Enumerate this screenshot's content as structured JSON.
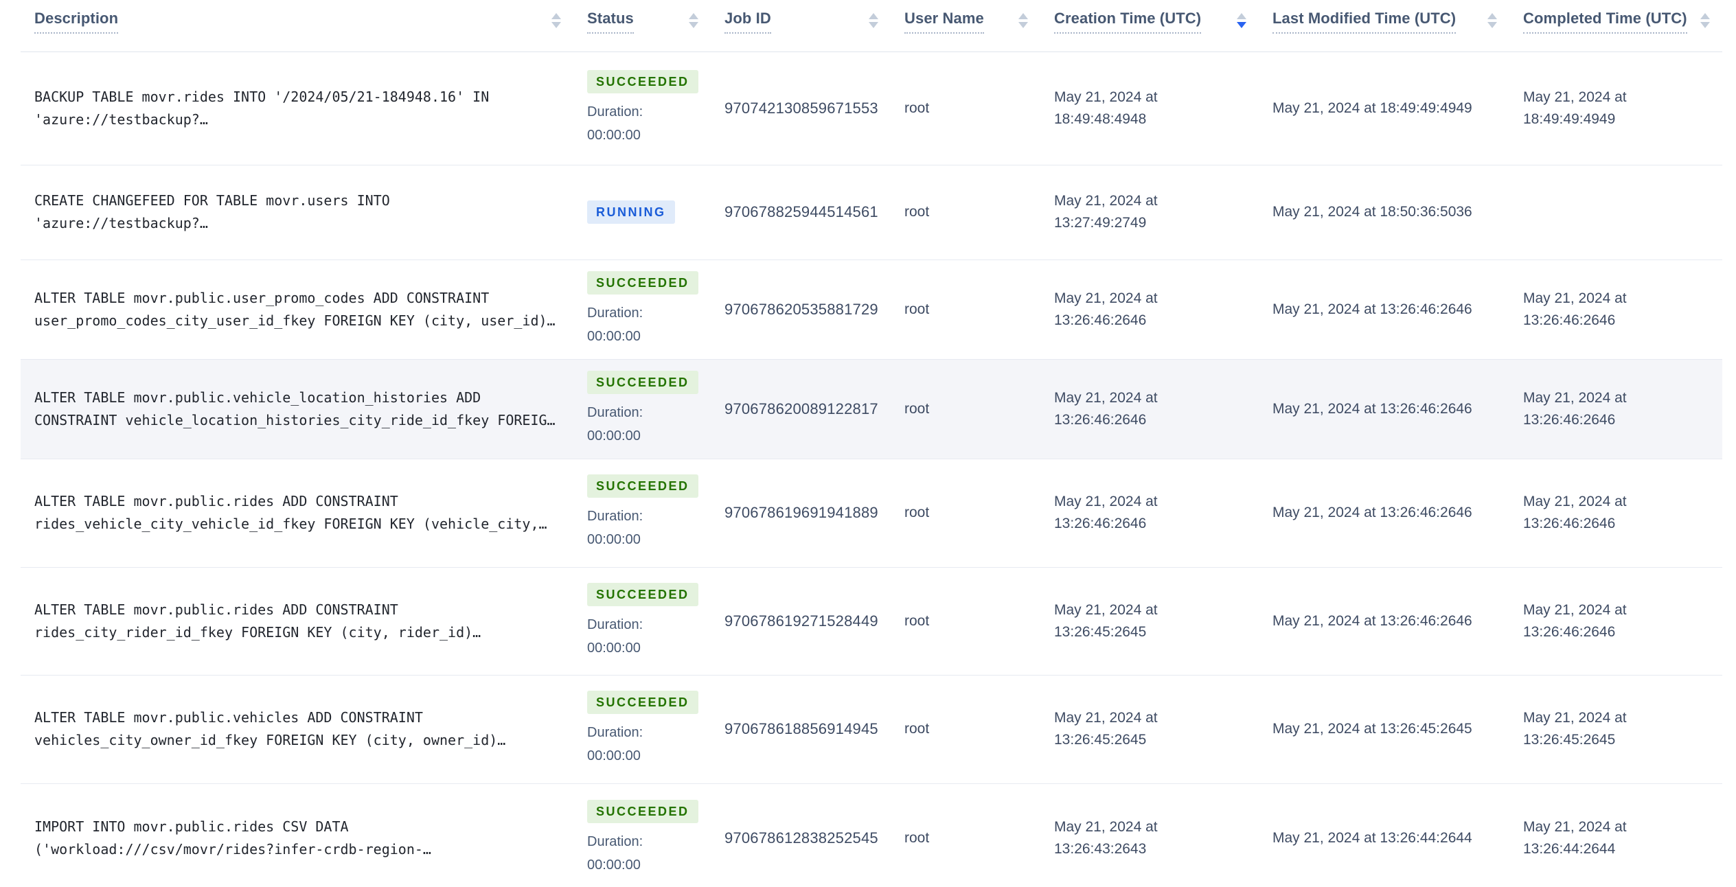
{
  "table": {
    "duration_label": "Duration:",
    "columns": [
      {
        "id": "description",
        "label": "Description",
        "sorted": null
      },
      {
        "id": "status",
        "label": "Status",
        "sorted": null
      },
      {
        "id": "job_id",
        "label": "Job ID",
        "sorted": null
      },
      {
        "id": "user_name",
        "label": "User Name",
        "sorted": null
      },
      {
        "id": "creation_time",
        "label": "Creation Time (UTC)",
        "sorted": "desc"
      },
      {
        "id": "last_modified_time",
        "label": "Last Modified Time (UTC)",
        "sorted": null
      },
      {
        "id": "completed_time",
        "label": "Completed Time (UTC)",
        "sorted": null
      }
    ],
    "rows": [
      {
        "description": "BACKUP TABLE movr.rides INTO '/2024/05/21-184948.16' IN 'azure://testbackup?…",
        "status": "SUCCEEDED",
        "duration": "00:00:00",
        "job_id": "970742130859671553",
        "user_name": "root",
        "creation_time": "May 21, 2024 at 18:49:48:4948",
        "last_modified_time": "May 21, 2024 at 18:49:49:4949",
        "completed_time": "May 21, 2024 at 18:49:49:4949",
        "highlighted": false
      },
      {
        "description": "CREATE CHANGEFEED FOR TABLE movr.users INTO 'azure://testbackup?…",
        "status": "RUNNING",
        "duration": null,
        "job_id": "970678825944514561",
        "user_name": "root",
        "creation_time": "May 21, 2024 at 13:27:49:2749",
        "last_modified_time": "May 21, 2024 at 18:50:36:5036",
        "completed_time": "",
        "highlighted": false
      },
      {
        "description": "ALTER TABLE movr.public.user_promo_codes ADD CONSTRAINT user_promo_codes_city_user_id_fkey FOREIGN KEY (city, user_id)…",
        "status": "SUCCEEDED",
        "duration": "00:00:00",
        "job_id": "970678620535881729",
        "user_name": "root",
        "creation_time": "May 21, 2024 at 13:26:46:2646",
        "last_modified_time": "May 21, 2024 at 13:26:46:2646",
        "completed_time": "May 21, 2024 at 13:26:46:2646",
        "highlighted": false
      },
      {
        "description": "ALTER TABLE movr.public.vehicle_location_histories ADD CONSTRAINT vehicle_location_histories_city_ride_id_fkey FOREIG…",
        "status": "SUCCEEDED",
        "duration": "00:00:00",
        "job_id": "970678620089122817",
        "user_name": "root",
        "creation_time": "May 21, 2024 at 13:26:46:2646",
        "last_modified_time": "May 21, 2024 at 13:26:46:2646",
        "completed_time": "May 21, 2024 at 13:26:46:2646",
        "highlighted": true
      },
      {
        "description": "ALTER TABLE movr.public.rides ADD CONSTRAINT rides_vehicle_city_vehicle_id_fkey FOREIGN KEY (vehicle_city,…",
        "status": "SUCCEEDED",
        "duration": "00:00:00",
        "job_id": "970678619691941889",
        "user_name": "root",
        "creation_time": "May 21, 2024 at 13:26:46:2646",
        "last_modified_time": "May 21, 2024 at 13:26:46:2646",
        "completed_time": "May 21, 2024 at 13:26:46:2646",
        "highlighted": false
      },
      {
        "description": "ALTER TABLE movr.public.rides ADD CONSTRAINT rides_city_rider_id_fkey FOREIGN KEY (city, rider_id)…",
        "status": "SUCCEEDED",
        "duration": "00:00:00",
        "job_id": "970678619271528449",
        "user_name": "root",
        "creation_time": "May 21, 2024 at 13:26:45:2645",
        "last_modified_time": "May 21, 2024 at 13:26:46:2646",
        "completed_time": "May 21, 2024 at 13:26:46:2646",
        "highlighted": false
      },
      {
        "description": "ALTER TABLE movr.public.vehicles ADD CONSTRAINT vehicles_city_owner_id_fkey FOREIGN KEY (city, owner_id)…",
        "status": "SUCCEEDED",
        "duration": "00:00:00",
        "job_id": "970678618856914945",
        "user_name": "root",
        "creation_time": "May 21, 2024 at 13:26:45:2645",
        "last_modified_time": "May 21, 2024 at 13:26:45:2645",
        "completed_time": "May 21, 2024 at 13:26:45:2645",
        "highlighted": false
      },
      {
        "description": "IMPORT INTO movr.public.rides CSV DATA ('workload:///csv/movr/rides?infer-crdb-region-…",
        "status": "SUCCEEDED",
        "duration": "00:00:00",
        "job_id": "970678612838252545",
        "user_name": "root",
        "creation_time": "May 21, 2024 at 13:26:43:2643",
        "last_modified_time": "May 21, 2024 at 13:26:44:2644",
        "completed_time": "May 21, 2024 at 13:26:44:2644",
        "highlighted": false
      }
    ]
  },
  "colors": {
    "succeeded_badge_bg": "#e4f2de",
    "succeeded_badge_text": "#237300",
    "running_badge_bg": "#e0ebfa",
    "running_badge_text": "#1a5cd8",
    "active_sort_arrow": "#2a63f0"
  }
}
